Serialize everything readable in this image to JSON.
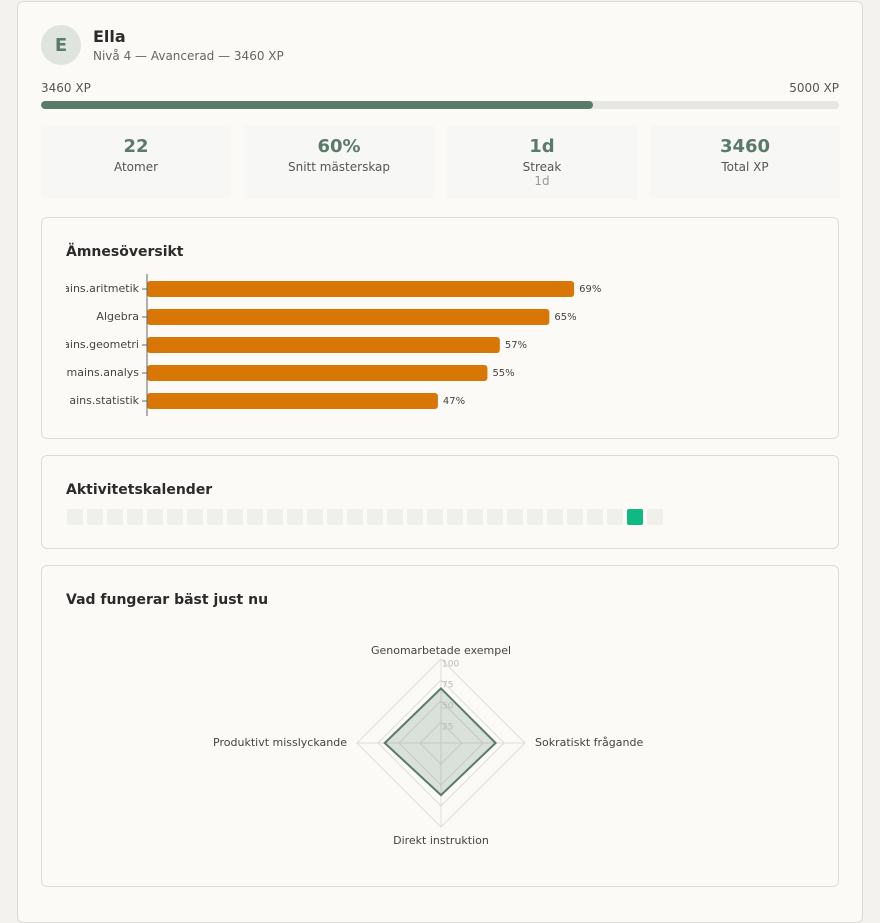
{
  "profile": {
    "avatar": "E",
    "name": "Ella",
    "subtitle": "Nivå 4 — Avancerad — 3460 XP"
  },
  "progress": {
    "value": 3460,
    "max": 5000,
    "value_label": "3460 XP",
    "max_label": "5000 XP",
    "color": "#5a7a6a"
  },
  "stats": [
    {
      "value": "22",
      "label": "Atomer"
    },
    {
      "value": "60%",
      "label": "Snitt mästerskap"
    },
    {
      "value": "1d",
      "label": "Streak",
      "sub": "1d"
    },
    {
      "value": "3460",
      "label": "Total XP"
    }
  ],
  "chart_data": [
    {
      "type": "bar",
      "title": "Ämnesöversikt",
      "orientation": "horizontal",
      "categories": [
        "ains.aritmetik",
        "Algebra",
        "ains.geometri",
        "mains.analys",
        "ains.statistik"
      ],
      "values": [
        69,
        65,
        57,
        55,
        47
      ],
      "value_labels": [
        "69%",
        "65%",
        "57%",
        "55%",
        "47%"
      ],
      "xlim": [
        0,
        100
      ],
      "color": "#d97706"
    },
    {
      "type": "calendar",
      "title": "Aktivitetskalender",
      "values": [
        0,
        0,
        0,
        0,
        0,
        0,
        0,
        0,
        0,
        0,
        0,
        0,
        0,
        0,
        0,
        0,
        0,
        0,
        0,
        0,
        0,
        0,
        0,
        0,
        0,
        0,
        0,
        0,
        1,
        0
      ],
      "colors": [
        "#efefec",
        "#10b981"
      ]
    },
    {
      "type": "radar",
      "title": "Vad fungerar bäst just nu",
      "categories": [
        "Genomarbetade exempel",
        "Sokratiskt frågande",
        "Direkt instruktion",
        "Produktivt misslyckande"
      ],
      "values": [
        65,
        65,
        62,
        67
      ],
      "rlim": [
        0,
        100
      ],
      "rticks": [
        25,
        50,
        75,
        100
      ],
      "color": "#5a7a6a"
    }
  ]
}
